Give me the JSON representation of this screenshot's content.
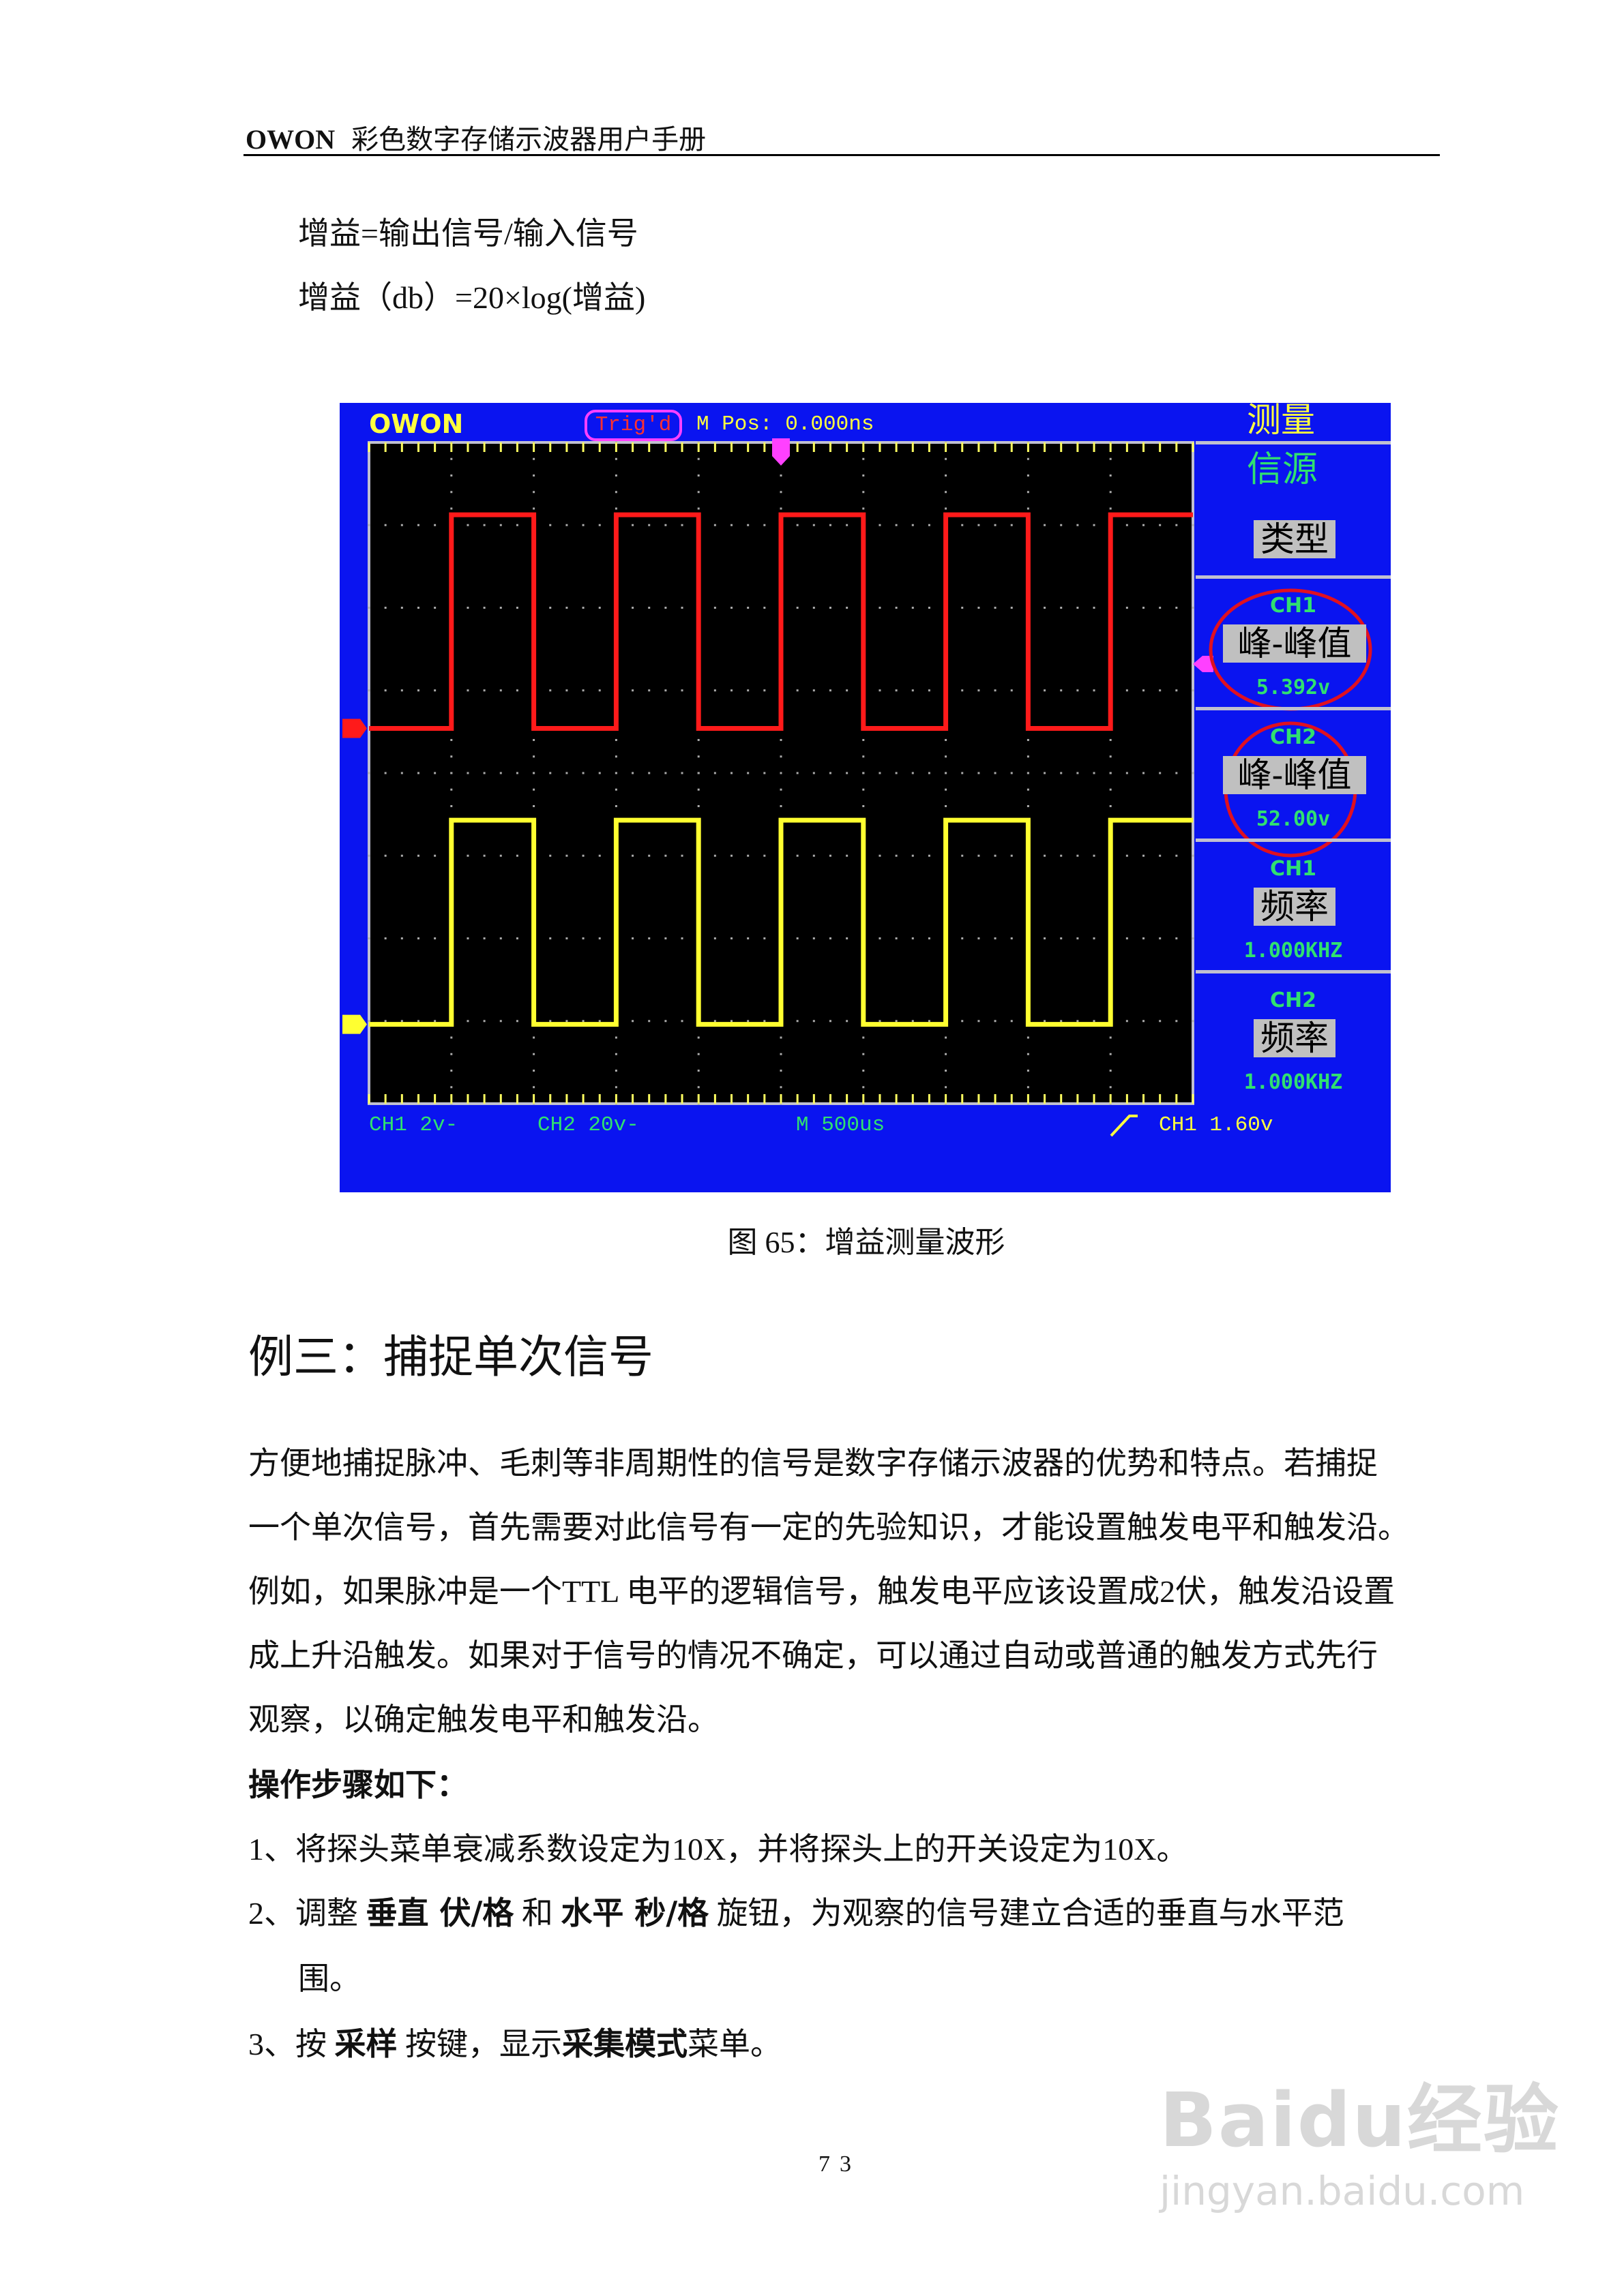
{
  "header": {
    "brand": "OWON",
    "title": "彩色数字存储示波器用户手册"
  },
  "formulas": [
    "增益=输出信号/输入信号",
    "增益（db）=20×log(增益)"
  ],
  "scope": {
    "logo": "OWON",
    "trig_status": "Trig'd",
    "m_pos": "M Pos: 0.000ns",
    "menu_title": "测量",
    "menu_source": "信源",
    "menu_type": "类型",
    "measurements": [
      {
        "channel": "CH1",
        "name": "峰-峰值",
        "value": "5.392v",
        "circled": true
      },
      {
        "channel": "CH2",
        "name": "峰-峰值",
        "value": "52.00v",
        "circled": true
      },
      {
        "channel": "CH1",
        "name": "频率",
        "value": "1.000KHZ",
        "circled": false
      },
      {
        "channel": "CH2",
        "name": "频率",
        "value": "1.000KHZ",
        "circled": false
      }
    ],
    "status": {
      "ch1": "CH1 2v-",
      "ch2": "CH2 20v-",
      "timebase": "M 500us",
      "trigger": "CH1 1.60v",
      "trigger_edge_icon": "rising-edge-icon"
    },
    "markers": {
      "ch1": "1",
      "ch2": "2",
      "trigger_pos": "T",
      "trigger_level": "V"
    },
    "colors": {
      "background": "#0a14f0",
      "ch1": "#ff1a1a",
      "ch2": "#ffff30",
      "highlight_circle": "#e01020"
    }
  },
  "caption": "图 65：增益测量波形",
  "section_heading": "例三：捕捉单次信号",
  "paragraph": [
    "方便地捕捉脉冲、毛刺等非周期性的信号是数字存储示波器的优势和特点。若捕捉",
    "一个单次信号，首先需要对此信号有一定的先验知识，才能设置触发电平和触发沿。",
    "例如，如果脉冲是一个TTL 电平的逻辑信号，触发电平应该设置成2伏，触发沿设置",
    "成上升沿触发。如果对于信号的情况不确定，可以通过自动或普通的触发方式先行",
    "观察，以确定触发电平和触发沿。"
  ],
  "steps_title": "操作步骤如下：",
  "steps": {
    "s1": "1、将探头菜单衰减系数设定为10X，并将探头上的开关设定为10X。",
    "s2_a": "2、调整 ",
    "s2_b1": "垂直 伏/格",
    "s2_c": " 和 ",
    "s2_b2": "水平 秒/格",
    "s2_d": " 旋钮，为观察的信号建立合适的垂直与水平范",
    "s2_e": "围。",
    "s3_a": "3、按 ",
    "s3_b": "采样",
    "s3_c": " 按键，显示",
    "s3_d": "采集模式",
    "s3_e": "菜单。"
  },
  "page_number": "73",
  "watermark": {
    "logo": "Baidu经验",
    "url": "jingyan.baidu.com"
  }
}
